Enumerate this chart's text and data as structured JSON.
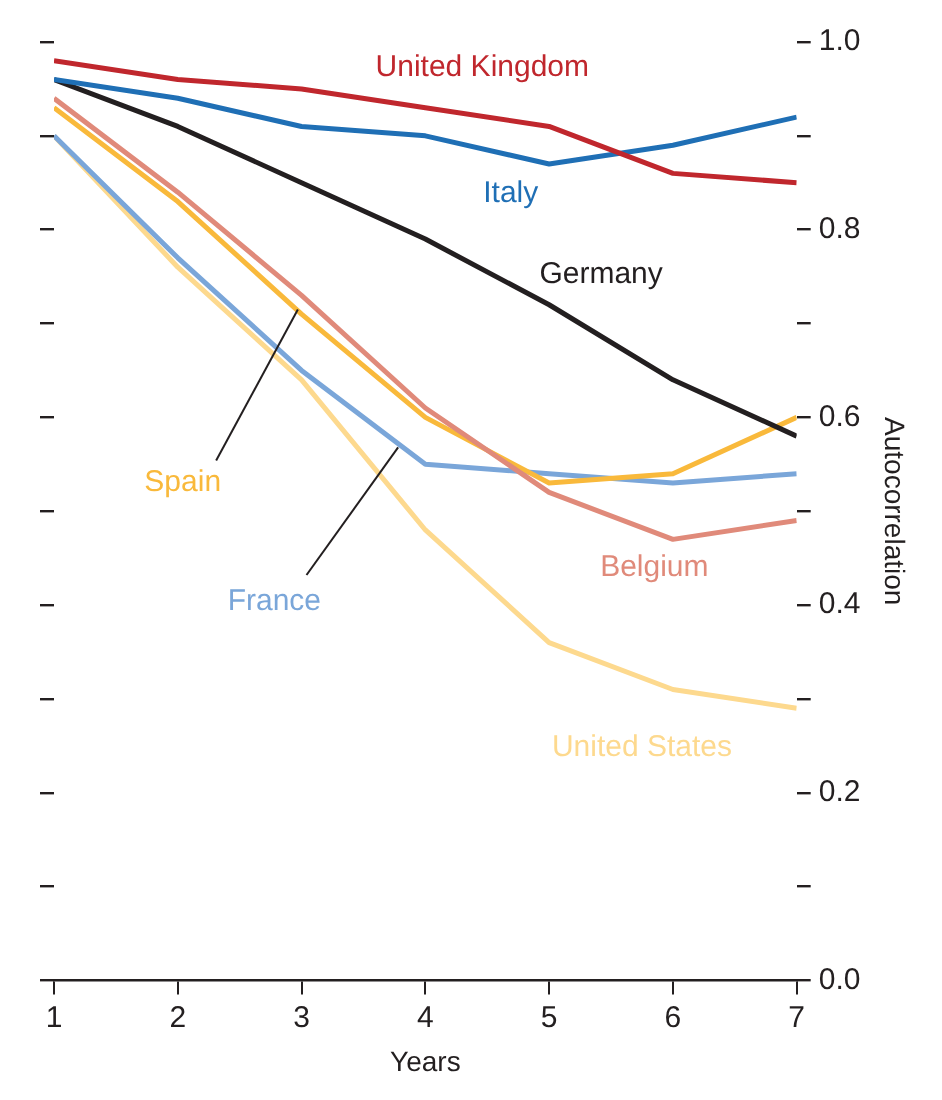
{
  "chart_data": {
    "type": "line",
    "xlabel": "Years",
    "ylabel": "Autocorrelation",
    "x": [
      1,
      2,
      3,
      4,
      5,
      6,
      7
    ],
    "xlim": [
      1,
      7
    ],
    "xticks": [
      1,
      2,
      3,
      4,
      5,
      6,
      7
    ],
    "ylim": [
      0,
      1
    ],
    "yticks": [
      {
        "value": 0,
        "label": "0.0"
      },
      {
        "value": 0.1,
        "label": null
      },
      {
        "value": 0.2,
        "label": "0.2"
      },
      {
        "value": 0.3,
        "label": null
      },
      {
        "value": 0.4,
        "label": "0.4"
      },
      {
        "value": 0.5,
        "label": null
      },
      {
        "value": 0.6,
        "label": "0.6"
      },
      {
        "value": 0.7,
        "label": null
      },
      {
        "value": 0.8,
        "label": "0.8"
      },
      {
        "value": 0.9,
        "label": null
      },
      {
        "value": 1,
        "label": "1.0"
      }
    ],
    "grid": false,
    "legend": false,
    "marker": "none",
    "line_style": "solid",
    "series": [
      {
        "name": "United Kingdom",
        "color": "#c0272d",
        "values": [
          0.98,
          0.96,
          0.95,
          0.93,
          0.91,
          0.86,
          0.85
        ]
      },
      {
        "name": "Italy",
        "color": "#1f6fb5",
        "values": [
          0.96,
          0.94,
          0.91,
          0.9,
          0.87,
          0.89,
          0.92
        ]
      },
      {
        "name": "Germany",
        "color": "#231f20",
        "values": [
          0.96,
          0.91,
          0.85,
          0.79,
          0.72,
          0.64,
          0.58
        ]
      },
      {
        "name": "Belgium",
        "color": "#e08a7a",
        "values": [
          0.94,
          0.84,
          0.73,
          0.61,
          0.52,
          0.47,
          0.49
        ]
      },
      {
        "name": "Spain",
        "color": "#f9b93b",
        "values": [
          0.93,
          0.83,
          0.71,
          0.6,
          0.53,
          0.54,
          0.6
        ]
      },
      {
        "name": "France",
        "color": "#7aa6d9",
        "values": [
          0.9,
          0.77,
          0.65,
          0.55,
          0.54,
          0.53,
          0.54
        ]
      },
      {
        "name": "United States",
        "color": "#fdd98e",
        "values": [
          0.9,
          0.76,
          0.64,
          0.48,
          0.36,
          0.31,
          0.29
        ]
      }
    ]
  }
}
